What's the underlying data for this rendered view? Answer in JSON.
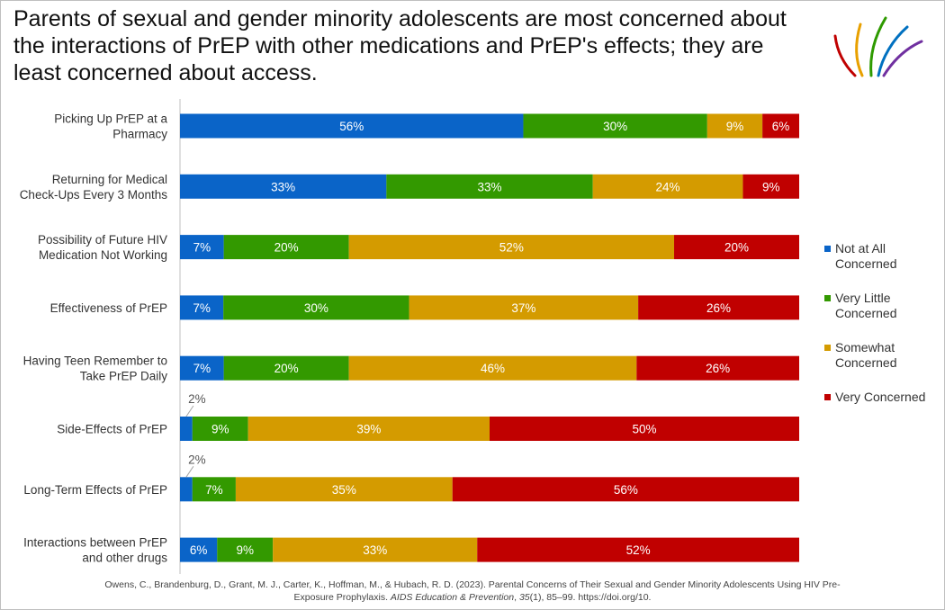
{
  "title": "Parents of sexual and gender minority adolescents are most concerned about the interactions of PrEP with other medications and PrEP's effects; they are least concerned about access.",
  "logo": {
    "icon": "lotus-logo-icon",
    "colors": [
      "#c00000",
      "#e8a000",
      "#2e9a00",
      "#0070c0",
      "#7030a0"
    ]
  },
  "chart_data": {
    "type": "bar",
    "orientation": "horizontal",
    "stacked": true,
    "unit": "%",
    "categories": [
      "Picking Up PrEP at a Pharmacy",
      "Returning for Medical Check-Ups Every 3 Months",
      "Possibility of Future HIV Medication Not Working",
      "Effectiveness of PrEP",
      "Having Teen Remember to Take PrEP Daily",
      "Side-Effects of PrEP",
      "Long-Term Effects of PrEP",
      "Interactions between PrEP and other drugs"
    ],
    "category_lines": [
      [
        "Picking Up PrEP at a",
        "Pharmacy"
      ],
      [
        "Returning for Medical",
        "Check-Ups Every 3 Months"
      ],
      [
        "Possibility of Future HIV",
        "Medication Not Working"
      ],
      [
        "Effectiveness of PrEP"
      ],
      [
        "Having Teen Remember to",
        "Take PrEP Daily"
      ],
      [
        "Side-Effects of PrEP"
      ],
      [
        "Long-Term Effects of PrEP"
      ],
      [
        "Interactions between PrEP",
        "and other drugs"
      ]
    ],
    "series": [
      {
        "name": "Not at All Concerned",
        "color": "#0a64c8",
        "values": [
          56,
          33,
          7,
          7,
          7,
          2,
          2,
          6
        ]
      },
      {
        "name": "Very Little Concerned",
        "color": "#339900",
        "values": [
          30,
          33,
          20,
          30,
          20,
          9,
          7,
          9
        ]
      },
      {
        "name": "Somewhat Concerned",
        "color": "#d49b00",
        "values": [
          9,
          24,
          52,
          37,
          46,
          39,
          35,
          33
        ]
      },
      {
        "name": "Very Concerned",
        "color": "#c00000",
        "values": [
          6,
          9,
          20,
          26,
          26,
          50,
          56,
          52
        ]
      }
    ],
    "data_labels": [
      [
        "56%",
        "30%",
        "9%",
        "6%"
      ],
      [
        "33%",
        "33%",
        "24%",
        "9%"
      ],
      [
        "7%",
        "20%",
        "52%",
        "20%"
      ],
      [
        "7%",
        "30%",
        "37%",
        "26%"
      ],
      [
        "7%",
        "20%",
        "46%",
        "26%"
      ],
      [
        "2%",
        "9%",
        "39%",
        "50%"
      ],
      [
        "2%",
        "7%",
        "35%",
        "56%"
      ],
      [
        "6%",
        "9%",
        "33%",
        "52%"
      ]
    ],
    "legend": {
      "position": "right",
      "entries": [
        [
          "Not at All",
          "Concerned"
        ],
        [
          "Very Little",
          "Concerned"
        ],
        [
          "Somewhat",
          "Concerned"
        ],
        [
          "Very Concerned"
        ]
      ]
    },
    "xlabel": "",
    "ylabel": "",
    "grid": false
  },
  "citation": {
    "line1": "Owens, C., Brandenburg, D., Grant, M. J., Carter, K., Hoffman, M., & Hubach, R. D. (2023). Parental Concerns of Their Sexual and Gender Minority Adolescents Using HIV Pre-",
    "line2_pre": "Exposure Prophylaxis. ",
    "journal": "AIDS Education & Prevention",
    "sep": ", ",
    "volume": "35",
    "line2_post": "(1), 85–99. https://doi.org/10."
  }
}
